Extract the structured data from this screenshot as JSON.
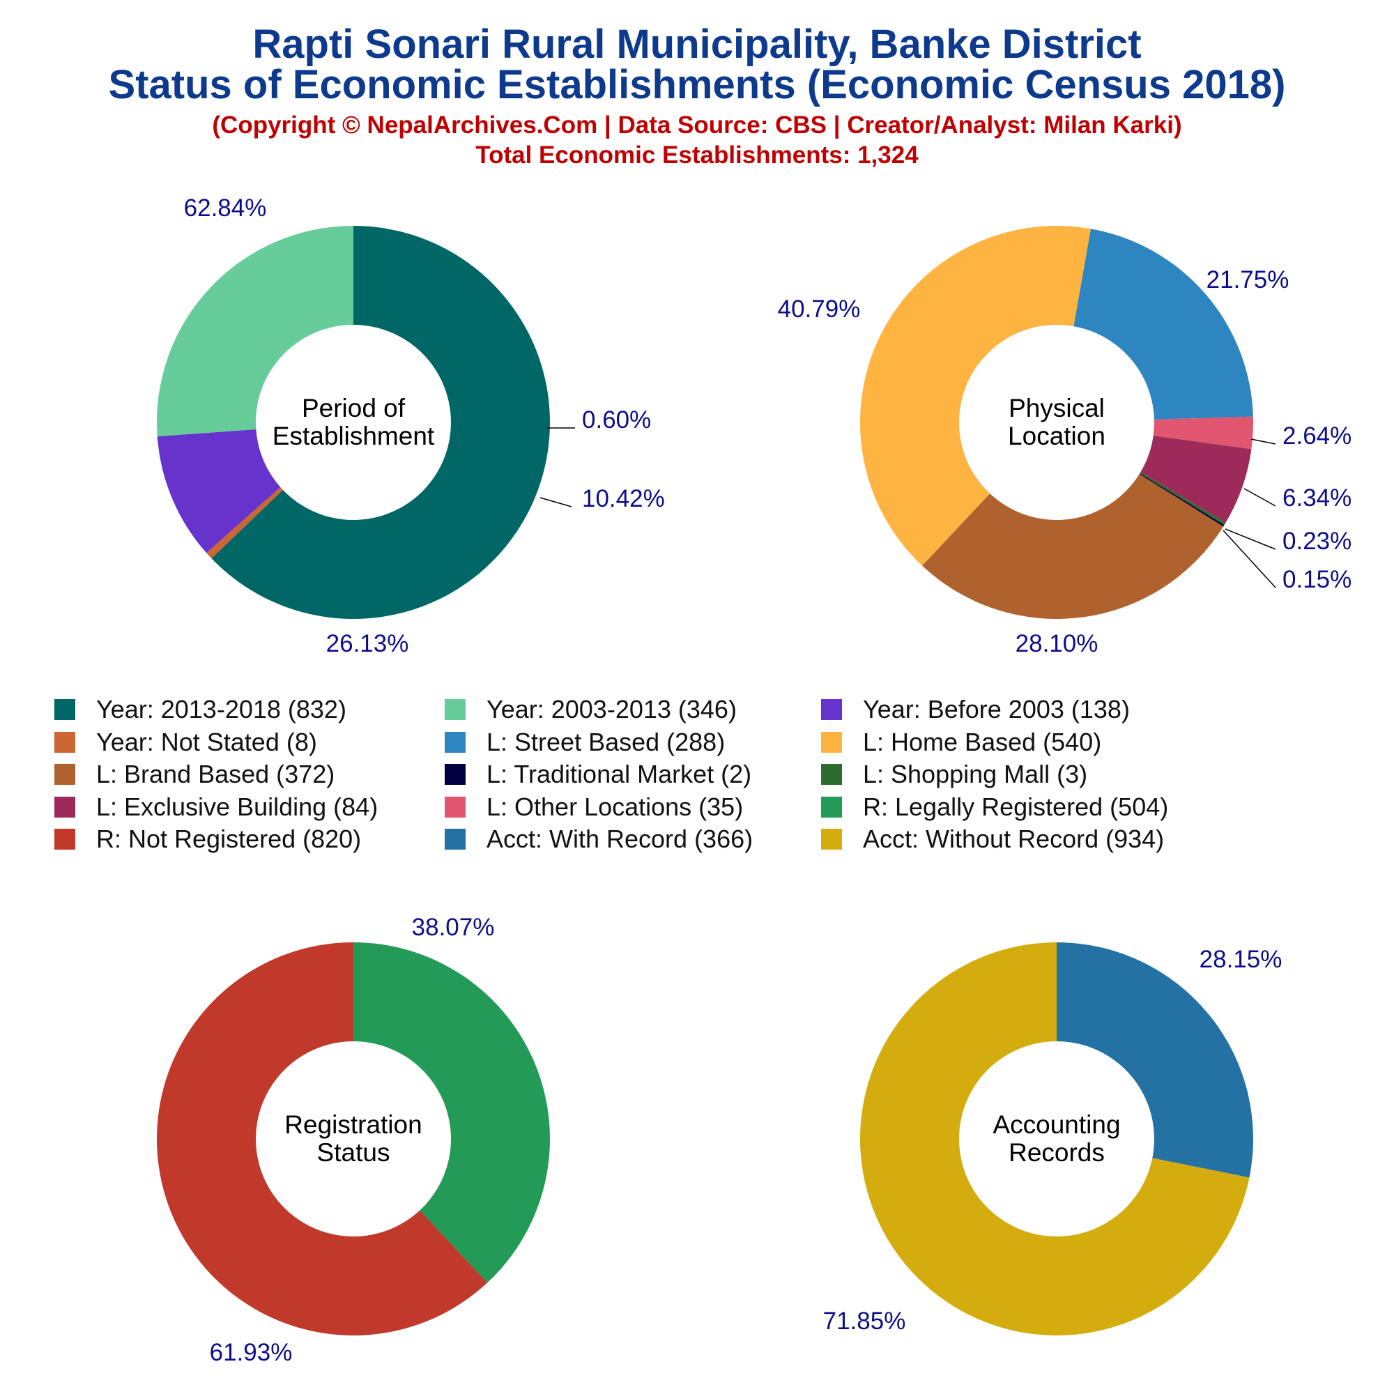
{
  "header": {
    "title_line1": "Rapti Sonari Rural Municipality, Banke District",
    "title_line2": "Status of Economic Establishments (Economic Census 2018)",
    "subtitle_line1": "(Copyright © NepalArchives.Com | Data Source: CBS | Creator/Analyst: Milan Karki)",
    "subtitle_line2": "Total Economic Establishments: 1,324"
  },
  "colors": {
    "percent_label": "#0d0d8c",
    "title": "#0d3a8c",
    "subtitle": "#c00000"
  },
  "chart_data": [
    {
      "type": "pie",
      "center_label": [
        "Period of",
        "Establishment"
      ],
      "slices": [
        {
          "label": "Year: 2013-2018",
          "value": 832,
          "percent": "62.84%",
          "color": "#016766"
        },
        {
          "label": "Year: Not Stated",
          "value": 8,
          "percent": "0.60%",
          "color": "#cc6633"
        },
        {
          "label": "Year: Before 2003",
          "value": 138,
          "percent": "10.42%",
          "color": "#6633cc"
        },
        {
          "label": "Year: 2003-2013",
          "value": 346,
          "percent": "26.13%",
          "color": "#66cc99"
        }
      ]
    },
    {
      "type": "pie",
      "center_label": [
        "Physical",
        "Location"
      ],
      "slices": [
        {
          "label": "L: Street Based",
          "value": 288,
          "percent": "21.75%",
          "color": "#2e86c1"
        },
        {
          "label": "L: Other Locations",
          "value": 35,
          "percent": "2.64%",
          "color": "#e05570"
        },
        {
          "label": "L: Exclusive Building",
          "value": 84,
          "percent": "6.34%",
          "color": "#9e2a5a"
        },
        {
          "label": "L: Shopping Mall",
          "value": 3,
          "percent": "0.23%",
          "color": "#2e6b30"
        },
        {
          "label": "L: Traditional Market",
          "value": 2,
          "percent": "0.15%",
          "color": "#000040"
        },
        {
          "label": "L: Brand Based",
          "value": 372,
          "percent": "28.10%",
          "color": "#b0622e"
        },
        {
          "label": "L: Home Based",
          "value": 540,
          "percent": "40.79%",
          "color": "#ffb340"
        }
      ]
    },
    {
      "type": "pie",
      "center_label": [
        "Registration",
        "Status"
      ],
      "slices": [
        {
          "label": "R: Legally Registered",
          "value": 504,
          "percent": "38.07%",
          "color": "#239b56"
        },
        {
          "label": "R: Not Registered",
          "value": 820,
          "percent": "61.93%",
          "color": "#c0392b"
        }
      ]
    },
    {
      "type": "pie",
      "center_label": [
        "Accounting",
        "Records"
      ],
      "slices": [
        {
          "label": "Acct: With Record",
          "value": 366,
          "percent": "28.15%",
          "color": "#2471a3"
        },
        {
          "label": "Acct: Without Record",
          "value": 934,
          "percent": "71.85%",
          "color": "#d4ac0d"
        }
      ]
    }
  ],
  "legend": [
    {
      "text": "Year: 2013-2018 (832)",
      "color": "#016766"
    },
    {
      "text": "Year: 2003-2013 (346)",
      "color": "#66cc99"
    },
    {
      "text": "Year: Before 2003 (138)",
      "color": "#6633cc"
    },
    {
      "text": "Year: Not Stated (8)",
      "color": "#cc6633"
    },
    {
      "text": "L: Street Based (288)",
      "color": "#2e86c1"
    },
    {
      "text": "L: Home Based (540)",
      "color": "#ffb340"
    },
    {
      "text": "L: Brand Based (372)",
      "color": "#b0622e"
    },
    {
      "text": "L: Traditional Market (2)",
      "color": "#000040"
    },
    {
      "text": "L: Shopping Mall (3)",
      "color": "#2e6b30"
    },
    {
      "text": "L: Exclusive Building (84)",
      "color": "#9e2a5a"
    },
    {
      "text": "L: Other Locations (35)",
      "color": "#e05570"
    },
    {
      "text": "R: Legally Registered (504)",
      "color": "#239b56"
    },
    {
      "text": "R: Not Registered (820)",
      "color": "#c0392b"
    },
    {
      "text": "Acct: With Record (366)",
      "color": "#2471a3"
    },
    {
      "text": "Acct: Without Record (934)",
      "color": "#d4ac0d"
    }
  ]
}
